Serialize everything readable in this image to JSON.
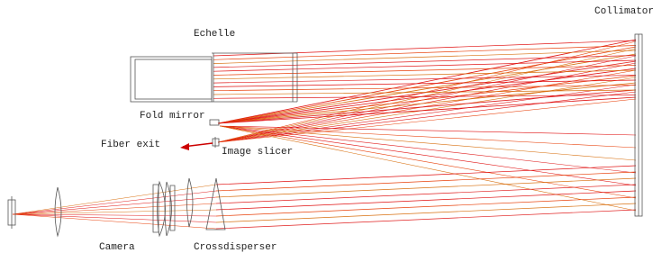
{
  "labels": {
    "collimator": "Collimator",
    "echelle": "Echelle",
    "fold_mirror": "Fold mirror",
    "fiber_exit": "Fiber exit",
    "image_slicer": "Image slicer",
    "camera": "Camera",
    "crossdisperser": "Crossdisperser"
  }
}
